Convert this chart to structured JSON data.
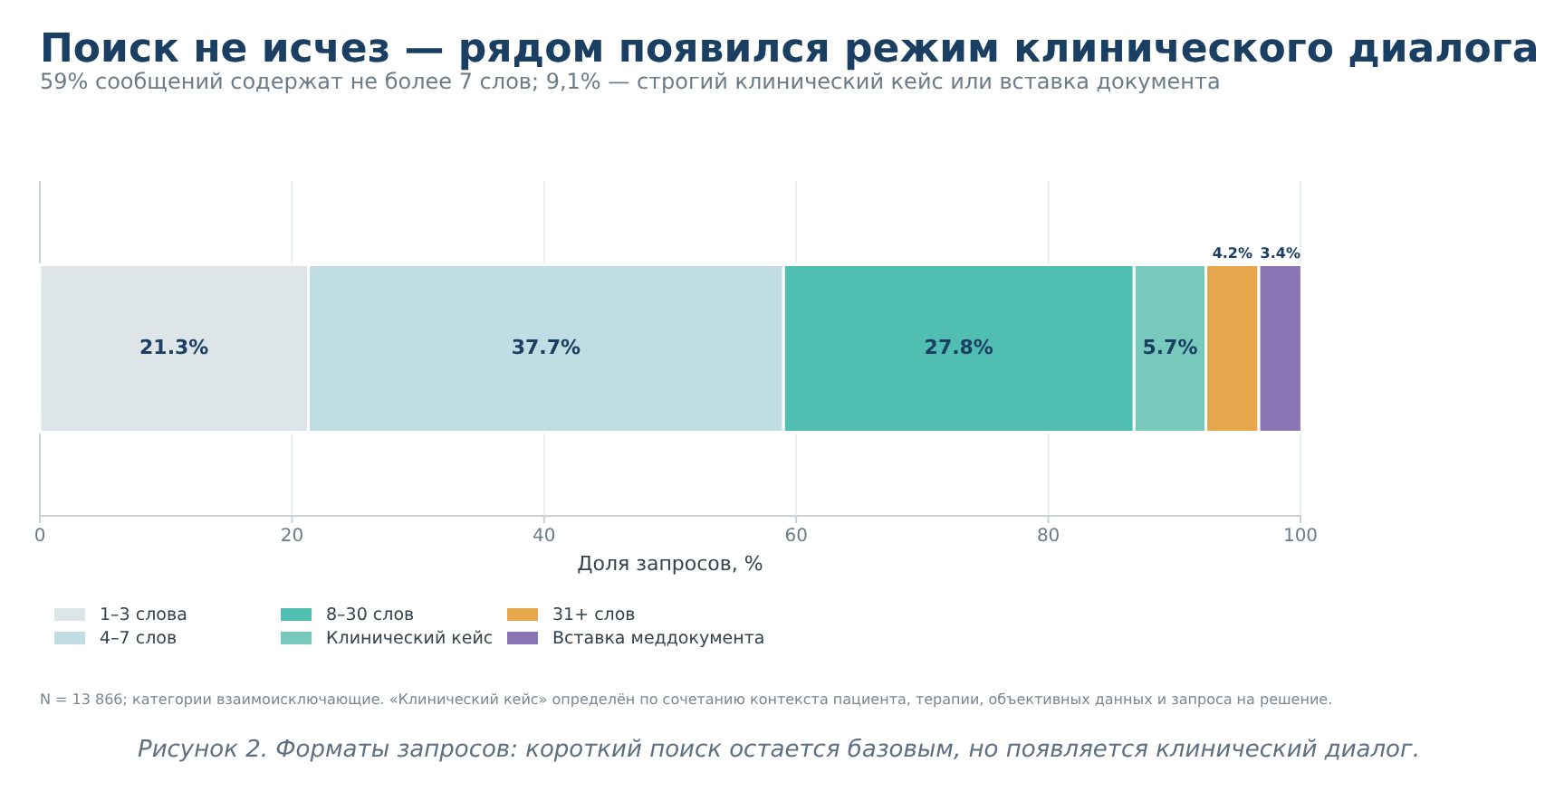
{
  "chart_data": {
    "type": "bar",
    "orientation": "horizontal",
    "stacked": true,
    "title": "Поиск не исчез — рядом появился режим клинического диалога",
    "subtitle": "59% сообщений содержат не более 7 слов; 9,1% — строгий клинический кейс или вставка документа",
    "xlabel": "Доля запросов, %",
    "categories": [
      null
    ],
    "series": [
      {
        "name": "1–3 слова",
        "color": "#dde5e8",
        "values": [
          21.3
        ],
        "value_labels": [
          "21.3%"
        ]
      },
      {
        "name": "4–7 слов",
        "color": "#bfdde3",
        "values": [
          37.7
        ],
        "value_labels": [
          "37.7%"
        ]
      },
      {
        "name": "8–30 слов",
        "color": "#50beb0",
        "values": [
          27.8
        ],
        "value_labels": [
          "27.8%"
        ]
      },
      {
        "name": "Клинический кейс",
        "color": "#76c9bb",
        "values": [
          5.7
        ],
        "value_labels": [
          "5.7%"
        ]
      },
      {
        "name": "31+ слов",
        "color": "#e6a64b",
        "values": [
          4.2
        ],
        "value_labels": [
          "4.2%"
        ]
      },
      {
        "name": "Вставка меддокумента",
        "color": "#8a76b4",
        "values": [
          3.4
        ],
        "value_labels": [
          "3.4%"
        ]
      }
    ],
    "xlim": [
      0,
      100
    ],
    "xticks": [
      0,
      20,
      40,
      60,
      80,
      100
    ],
    "grid": "x",
    "legend": "bottom left",
    "annotations": [
      "N = 13 866; категории взаимоисключающие. «Клинический кейс» определён по сочетанию контекста пациента, терапии, объективных данных и запроса на решение.",
      "Рисунок 2. Форматы запросов: короткий поиск остается базовым, но появляется клинический диалог."
    ]
  }
}
